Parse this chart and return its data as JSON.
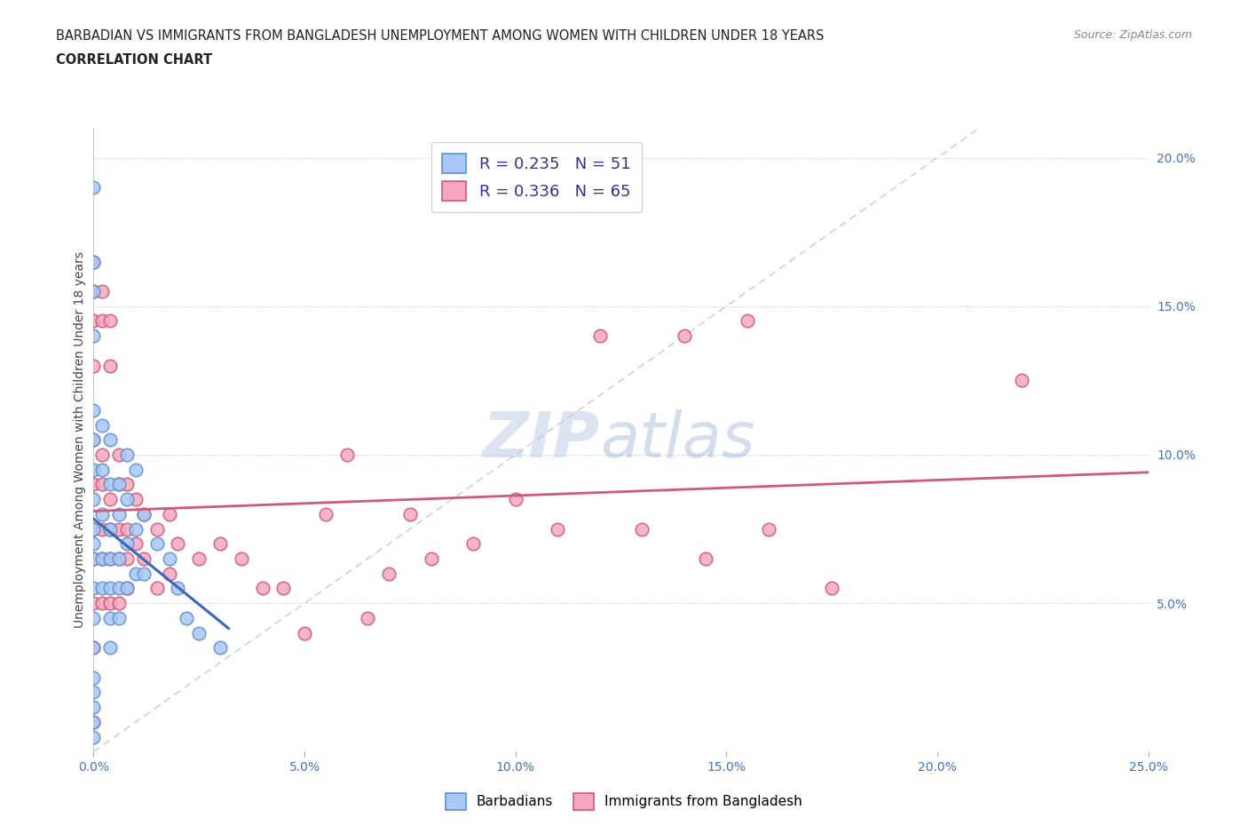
{
  "title_line1": "BARBADIAN VS IMMIGRANTS FROM BANGLADESH UNEMPLOYMENT AMONG WOMEN WITH CHILDREN UNDER 18 YEARS",
  "title_line2": "CORRELATION CHART",
  "source_text": "Source: ZipAtlas.com",
  "ylabel": "Unemployment Among Women with Children Under 18 years",
  "xlim": [
    0.0,
    0.25
  ],
  "ylim": [
    0.0,
    0.21
  ],
  "barbadian_color": "#a8c8f5",
  "bangladesh_color": "#f5a8c0",
  "barbadian_edge": "#6090d0",
  "bangladesh_edge": "#d05878",
  "trendline_barbadian_color": "#3a65b8",
  "trendline_bangladesh_color": "#d05878",
  "diagonal_color": "#a0b8d8",
  "watermark_zip": "ZIP",
  "watermark_atlas": "atlas",
  "barbadian_label": "Barbadians",
  "bangladesh_label": "Immigrants from Bangladesh",
  "legend_texts": [
    "R = 0.235   N = 51",
    "R = 0.336   N = 65"
  ],
  "barbadian_x": [
    0.0,
    0.0,
    0.0,
    0.0,
    0.0,
    0.0,
    0.0,
    0.0,
    0.0,
    0.0,
    0.0,
    0.0,
    0.0,
    0.0,
    0.0,
    0.0,
    0.0,
    0.0,
    0.0,
    0.002,
    0.002,
    0.002,
    0.002,
    0.002,
    0.004,
    0.004,
    0.004,
    0.004,
    0.004,
    0.004,
    0.004,
    0.006,
    0.006,
    0.006,
    0.006,
    0.006,
    0.008,
    0.008,
    0.008,
    0.008,
    0.01,
    0.01,
    0.01,
    0.012,
    0.012,
    0.015,
    0.018,
    0.02,
    0.022,
    0.025,
    0.03
  ],
  "barbadian_y": [
    0.19,
    0.165,
    0.155,
    0.14,
    0.115,
    0.105,
    0.095,
    0.085,
    0.075,
    0.07,
    0.065,
    0.055,
    0.045,
    0.035,
    0.025,
    0.02,
    0.015,
    0.01,
    0.005,
    0.11,
    0.095,
    0.08,
    0.065,
    0.055,
    0.105,
    0.09,
    0.075,
    0.065,
    0.055,
    0.045,
    0.035,
    0.09,
    0.08,
    0.065,
    0.055,
    0.045,
    0.1,
    0.085,
    0.07,
    0.055,
    0.095,
    0.075,
    0.06,
    0.08,
    0.06,
    0.07,
    0.065,
    0.055,
    0.045,
    0.04,
    0.035
  ],
  "bangladesh_x": [
    0.0,
    0.0,
    0.0,
    0.0,
    0.0,
    0.0,
    0.0,
    0.0,
    0.0,
    0.0,
    0.0,
    0.002,
    0.002,
    0.002,
    0.002,
    0.002,
    0.002,
    0.002,
    0.004,
    0.004,
    0.004,
    0.004,
    0.004,
    0.004,
    0.006,
    0.006,
    0.006,
    0.006,
    0.006,
    0.008,
    0.008,
    0.008,
    0.008,
    0.01,
    0.01,
    0.012,
    0.012,
    0.015,
    0.015,
    0.018,
    0.018,
    0.02,
    0.025,
    0.03,
    0.035,
    0.04,
    0.045,
    0.05,
    0.055,
    0.06,
    0.065,
    0.07,
    0.075,
    0.08,
    0.09,
    0.1,
    0.11,
    0.12,
    0.13,
    0.14,
    0.145,
    0.155,
    0.16,
    0.175,
    0.22
  ],
  "bangladesh_y": [
    0.165,
    0.155,
    0.145,
    0.13,
    0.105,
    0.09,
    0.075,
    0.065,
    0.05,
    0.035,
    0.01,
    0.155,
    0.145,
    0.1,
    0.09,
    0.075,
    0.065,
    0.05,
    0.145,
    0.13,
    0.085,
    0.075,
    0.065,
    0.05,
    0.1,
    0.09,
    0.075,
    0.065,
    0.05,
    0.09,
    0.075,
    0.065,
    0.055,
    0.085,
    0.07,
    0.08,
    0.065,
    0.075,
    0.055,
    0.08,
    0.06,
    0.07,
    0.065,
    0.07,
    0.065,
    0.055,
    0.055,
    0.04,
    0.08,
    0.1,
    0.045,
    0.06,
    0.08,
    0.065,
    0.07,
    0.085,
    0.075,
    0.14,
    0.075,
    0.14,
    0.065,
    0.145,
    0.075,
    0.055,
    0.125
  ]
}
